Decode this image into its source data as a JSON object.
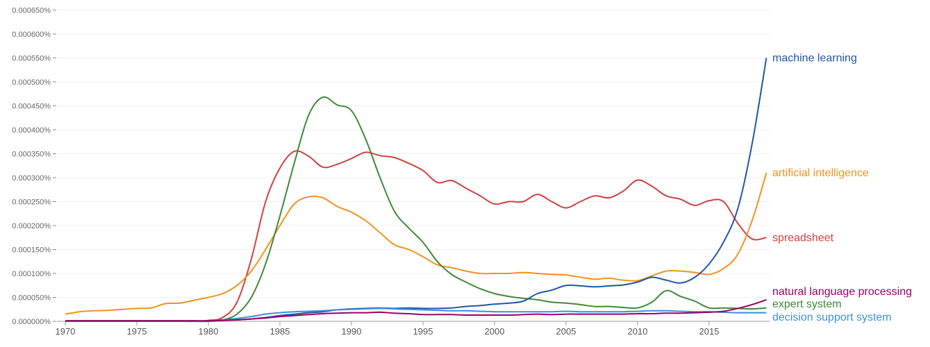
{
  "chart_data": {
    "type": "line",
    "title": "",
    "xlabel": "",
    "ylabel": "",
    "value_scale_percent": 1e-06,
    "value_unit_note": "series values are in millionths of a percent",
    "xlim": [
      1970,
      2019
    ],
    "ylim": [
      0,
      650
    ],
    "grid": true,
    "legend": "inline-right",
    "x_ticks": [
      "1970",
      "1975",
      "1980",
      "1985",
      "1990",
      "1995",
      "2000",
      "2005",
      "2010",
      "2015"
    ],
    "y_ticks": [
      {
        "v": 0,
        "label": "0.000000%"
      },
      {
        "v": 50,
        "label": "0.000050%"
      },
      {
        "v": 100,
        "label": "0.000100%"
      },
      {
        "v": 150,
        "label": "0.000150%"
      },
      {
        "v": 200,
        "label": "0.000200%"
      },
      {
        "v": 250,
        "label": "0.000250%"
      },
      {
        "v": 300,
        "label": "0.000300%"
      },
      {
        "v": 350,
        "label": "0.000350%"
      },
      {
        "v": 400,
        "label": "0.000400%"
      },
      {
        "v": 450,
        "label": "0.000450%"
      },
      {
        "v": 500,
        "label": "0.000500%"
      },
      {
        "v": 550,
        "label": "0.000550%"
      },
      {
        "v": 600,
        "label": "0.000600%"
      },
      {
        "v": 650,
        "label": "0.000650%"
      }
    ],
    "x_start": 1970,
    "series": [
      {
        "name": "spreadsheet",
        "color": "#d0403f",
        "values": [
          0,
          0,
          0,
          0,
          0,
          0,
          0,
          0,
          0,
          0,
          2,
          8,
          40,
          130,
          250,
          320,
          355,
          345,
          322,
          328,
          340,
          353,
          346,
          342,
          330,
          315,
          290,
          294,
          278,
          262,
          245,
          250,
          250,
          265,
          250,
          237,
          250,
          262,
          258,
          272,
          295,
          282,
          262,
          255,
          242,
          252,
          250,
          205,
          172,
          175
        ]
      },
      {
        "name": "artificial intelligence",
        "color": "#f2921e",
        "values": [
          15,
          20,
          22,
          23,
          25,
          27,
          28,
          37,
          38,
          44,
          50,
          58,
          75,
          105,
          150,
          200,
          245,
          260,
          258,
          240,
          228,
          210,
          185,
          160,
          150,
          135,
          118,
          112,
          105,
          100,
          100,
          100,
          102,
          100,
          98,
          97,
          92,
          88,
          90,
          86,
          85,
          95,
          105,
          105,
          102,
          98,
          110,
          140,
          210,
          310
        ]
      },
      {
        "name": "expert system",
        "color": "#3d8a37",
        "values": [
          0,
          0,
          0,
          0,
          0,
          0,
          0,
          0,
          0,
          0,
          0,
          3,
          15,
          50,
          120,
          220,
          330,
          430,
          468,
          452,
          440,
          380,
          300,
          230,
          195,
          165,
          125,
          98,
          82,
          68,
          58,
          52,
          48,
          45,
          40,
          38,
          35,
          31,
          31,
          29,
          28,
          40,
          64,
          52,
          42,
          28,
          28,
          27,
          26,
          28
        ]
      },
      {
        "name": "machine learning",
        "color": "#2155a6",
        "values": [
          1,
          1,
          1,
          1,
          1,
          1,
          1,
          1,
          1,
          1,
          1,
          2,
          3,
          5,
          8,
          12,
          15,
          18,
          20,
          24,
          26,
          27,
          28,
          27,
          28,
          27,
          27,
          28,
          31,
          33,
          36,
          38,
          42,
          58,
          65,
          75,
          74,
          72,
          74,
          76,
          82,
          92,
          86,
          80,
          92,
          120,
          165,
          235,
          370,
          550
        ]
      },
      {
        "name": "decision support system",
        "color": "#3a8fdd",
        "values": [
          1,
          1,
          1,
          1,
          1,
          1,
          1,
          1,
          1,
          1,
          1,
          3,
          6,
          10,
          15,
          18,
          20,
          21,
          22,
          24,
          25,
          26,
          27,
          26,
          25,
          24,
          23,
          22,
          22,
          21,
          20,
          20,
          20,
          20,
          20,
          21,
          20,
          20,
          20,
          20,
          21,
          22,
          22,
          21,
          20,
          20,
          19,
          18,
          18,
          18
        ]
      },
      {
        "name": "natural language processing",
        "color": "#990066",
        "values": [
          1,
          1,
          1,
          1,
          1,
          1,
          1,
          1,
          1,
          1,
          1,
          2,
          3,
          5,
          7,
          10,
          12,
          14,
          16,
          17,
          18,
          18,
          19,
          17,
          16,
          14,
          14,
          14,
          13,
          13,
          13,
          13,
          14,
          15,
          14,
          15,
          15,
          15,
          15,
          15,
          16,
          16,
          17,
          17,
          18,
          19,
          21,
          27,
          35,
          45
        ]
      }
    ]
  }
}
